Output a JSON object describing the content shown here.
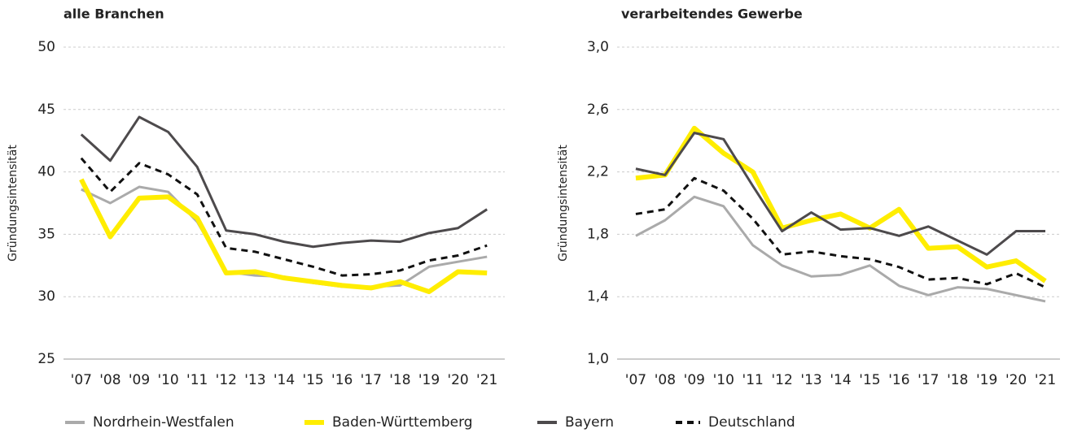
{
  "chart_data": [
    {
      "type": "line",
      "title": "alle Branchen",
      "ylabel": "Gründungsintensität",
      "categories": [
        "'07",
        "'08",
        "'09",
        "'10",
        "'11",
        "'12",
        "'13",
        "'14",
        "'15",
        "'16",
        "'17",
        "'18",
        "'19",
        "'20",
        "'21"
      ],
      "ylim": [
        25,
        50
      ],
      "yticks": [
        25,
        30,
        35,
        40,
        45,
        50
      ],
      "grid": true,
      "series": [
        {
          "name": "Nordrhein-Westfalen",
          "color": "#aaaaaa",
          "linestyle": "solid",
          "values": [
            38.6,
            37.5,
            38.8,
            38.4,
            36.0,
            32.0,
            31.7,
            31.6,
            31.1,
            30.8,
            30.8,
            30.9,
            32.4,
            32.8,
            33.2
          ]
        },
        {
          "name": "Baden-Württemberg",
          "color": "#ffed00",
          "linestyle": "thick",
          "values": [
            39.4,
            34.8,
            37.9,
            38.0,
            36.3,
            31.9,
            32.0,
            31.5,
            31.2,
            30.9,
            30.7,
            31.2,
            30.4,
            32.0,
            31.9
          ]
        },
        {
          "name": "Bayern",
          "color": "#4d4a4c",
          "linestyle": "solid",
          "values": [
            43.0,
            40.9,
            44.4,
            43.2,
            40.4,
            35.3,
            35.0,
            34.4,
            34.0,
            34.3,
            34.5,
            34.4,
            35.1,
            35.5,
            37.0
          ]
        },
        {
          "name": "Deutschland",
          "color": "#111111",
          "linestyle": "dashed",
          "values": [
            41.1,
            38.4,
            40.7,
            39.8,
            38.2,
            33.9,
            33.6,
            33.0,
            32.4,
            31.7,
            31.8,
            32.1,
            32.9,
            33.3,
            34.1
          ]
        }
      ]
    },
    {
      "type": "line",
      "title": "verarbeitendes Gewerbe",
      "ylabel": "Gründungsintensität",
      "categories": [
        "'07",
        "'08",
        "'09",
        "'10",
        "'11",
        "'12",
        "'13",
        "'14",
        "'15",
        "'16",
        "'17",
        "'18",
        "'19",
        "'20",
        "'21"
      ],
      "ylim": [
        1.0,
        3.0
      ],
      "yticks": [
        {
          "value": 1.0,
          "label": "1,0"
        },
        {
          "value": 1.4,
          "label": "1,4"
        },
        {
          "value": 1.8,
          "label": "1,8"
        },
        {
          "value": 2.2,
          "label": "2,2"
        },
        {
          "value": 2.6,
          "label": "2,6"
        },
        {
          "value": 3.0,
          "label": "3,0"
        }
      ],
      "grid": true,
      "series": [
        {
          "name": "Nordrhein-Westfalen",
          "color": "#aaaaaa",
          "linestyle": "solid",
          "values": [
            1.79,
            1.89,
            2.04,
            1.98,
            1.73,
            1.6,
            1.53,
            1.54,
            1.6,
            1.47,
            1.41,
            1.46,
            1.45,
            1.41,
            1.37
          ]
        },
        {
          "name": "Baden-Württemberg",
          "color": "#ffed00",
          "linestyle": "thick",
          "values": [
            2.16,
            2.18,
            2.48,
            2.32,
            2.2,
            1.84,
            1.89,
            1.93,
            1.84,
            1.96,
            1.71,
            1.72,
            1.59,
            1.63,
            1.5
          ]
        },
        {
          "name": "Bayern",
          "color": "#4d4a4c",
          "linestyle": "solid",
          "values": [
            2.22,
            2.18,
            2.45,
            2.41,
            2.11,
            1.82,
            1.94,
            1.83,
            1.84,
            1.79,
            1.85,
            1.76,
            1.67,
            1.82,
            1.82
          ]
        },
        {
          "name": "Deutschland",
          "color": "#111111",
          "linestyle": "dashed",
          "values": [
            1.93,
            1.96,
            2.16,
            2.08,
            1.9,
            1.67,
            1.69,
            1.66,
            1.64,
            1.59,
            1.51,
            1.52,
            1.48,
            1.55,
            1.46
          ]
        }
      ]
    }
  ]
}
